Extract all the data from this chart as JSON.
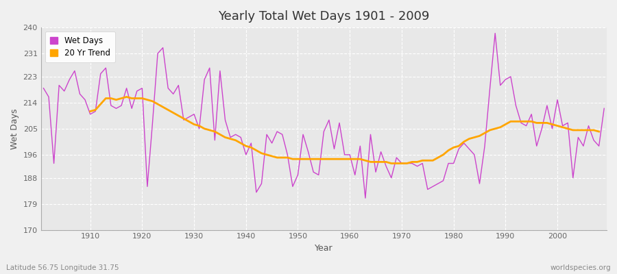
{
  "title": "Yearly Total Wet Days 1901 - 2009",
  "xlabel": "Year",
  "ylabel": "Wet Days",
  "footnote_left": "Latitude 56.75 Longitude 31.75",
  "footnote_right": "worldspecies.org",
  "ylim": [
    170,
    240
  ],
  "yticks": [
    170,
    179,
    188,
    196,
    205,
    214,
    223,
    231,
    240
  ],
  "xlim": [
    1901,
    2009
  ],
  "wet_days_color": "#CC44CC",
  "trend_color": "#FFA500",
  "bg_color": "#F0F0F0",
  "plot_bg_color": "#E8E8E8",
  "grid_color": "#FFFFFF",
  "legend_labels": [
    "Wet Days",
    "20 Yr Trend"
  ],
  "years": [
    1901,
    1902,
    1903,
    1904,
    1905,
    1906,
    1907,
    1908,
    1909,
    1910,
    1911,
    1912,
    1913,
    1914,
    1915,
    1916,
    1917,
    1918,
    1919,
    1920,
    1921,
    1922,
    1923,
    1924,
    1925,
    1926,
    1927,
    1928,
    1929,
    1930,
    1931,
    1932,
    1933,
    1934,
    1935,
    1936,
    1937,
    1938,
    1939,
    1940,
    1941,
    1942,
    1943,
    1944,
    1945,
    1946,
    1947,
    1948,
    1949,
    1950,
    1951,
    1952,
    1953,
    1954,
    1955,
    1956,
    1957,
    1958,
    1959,
    1960,
    1961,
    1962,
    1963,
    1964,
    1965,
    1966,
    1967,
    1968,
    1969,
    1970,
    1971,
    1972,
    1973,
    1974,
    1975,
    1976,
    1977,
    1978,
    1979,
    1980,
    1981,
    1982,
    1983,
    1984,
    1985,
    1986,
    1987,
    1988,
    1989,
    1990,
    1991,
    1992,
    1993,
    1994,
    1995,
    1996,
    1997,
    1998,
    1999,
    2000,
    2001,
    2002,
    2003,
    2004,
    2005,
    2006,
    2007,
    2008,
    2009
  ],
  "wet_days": [
    219,
    216,
    193,
    220,
    218,
    222,
    225,
    217,
    215,
    210,
    211,
    224,
    226,
    213,
    212,
    213,
    219,
    212,
    218,
    219,
    185,
    207,
    231,
    233,
    219,
    217,
    220,
    208,
    209,
    210,
    205,
    222,
    226,
    201,
    225,
    208,
    202,
    203,
    202,
    196,
    200,
    183,
    186,
    203,
    200,
    204,
    203,
    196,
    185,
    189,
    203,
    197,
    190,
    189,
    204,
    208,
    198,
    207,
    196,
    196,
    189,
    199,
    181,
    203,
    190,
    197,
    192,
    188,
    195,
    193,
    193,
    193,
    192,
    193,
    184,
    185,
    186,
    187,
    193,
    193,
    198,
    200,
    198,
    196,
    186,
    199,
    219,
    238,
    220,
    222,
    223,
    213,
    207,
    206,
    210,
    199,
    205,
    213,
    205,
    215,
    206,
    207,
    188,
    202,
    199,
    206,
    201,
    199,
    212
  ],
  "trend_values": [
    null,
    null,
    null,
    null,
    null,
    null,
    null,
    null,
    null,
    211.0,
    211.5,
    213.5,
    215.5,
    215.5,
    215.0,
    215.5,
    216.0,
    215.5,
    215.5,
    215.5,
    215.0,
    214.5,
    213.5,
    212.5,
    211.5,
    210.5,
    209.5,
    208.5,
    207.5,
    206.5,
    206.0,
    205.0,
    204.5,
    204.0,
    203.0,
    202.0,
    201.5,
    201.0,
    200.0,
    199.0,
    198.5,
    197.5,
    196.5,
    196.0,
    195.5,
    195.0,
    195.0,
    195.0,
    194.5,
    194.5,
    194.5,
    194.5,
    194.5,
    194.5,
    194.5,
    194.5,
    194.5,
    194.5,
    194.5,
    194.5,
    194.5,
    194.5,
    194.0,
    193.5,
    193.5,
    193.5,
    193.5,
    193.0,
    193.0,
    193.0,
    193.0,
    193.5,
    193.5,
    194.0,
    194.0,
    194.0,
    195.0,
    196.0,
    197.5,
    198.5,
    199.0,
    200.5,
    201.5,
    202.0,
    202.5,
    203.5,
    204.5,
    205.0,
    205.5,
    206.5,
    207.5,
    207.5,
    207.5,
    207.5,
    207.5,
    207.0,
    207.0,
    207.0,
    206.5,
    206.0,
    205.5,
    205.0,
    204.5,
    204.5,
    204.5,
    204.5,
    204.5,
    204.0,
    null
  ]
}
